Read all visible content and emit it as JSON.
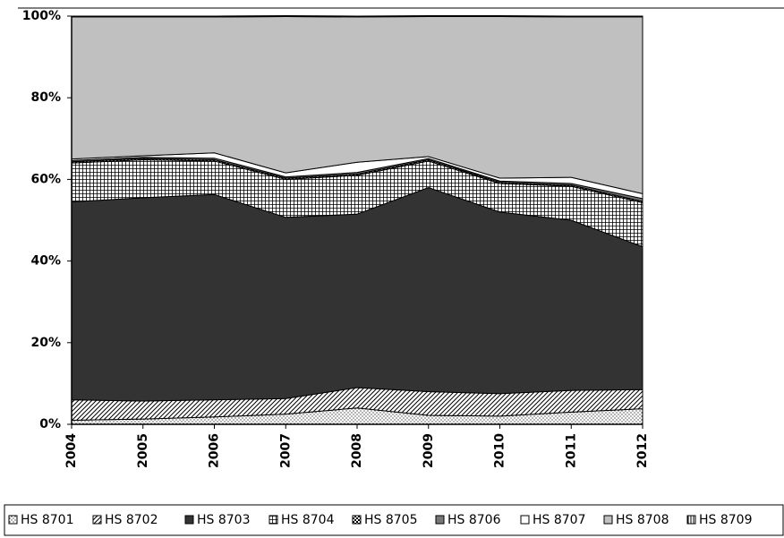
{
  "chart_data": {
    "type": "stacked_area",
    "categories": [
      "2004",
      "2005",
      "2006",
      "2007",
      "2008",
      "2009",
      "2010",
      "2011",
      "2012"
    ],
    "series": [
      {
        "name": "HS 8701",
        "color": "#ffffff",
        "pattern": "dots",
        "values": [
          1,
          1.3,
          1.8,
          2.5,
          4,
          2.2,
          2,
          3,
          3.8
        ]
      },
      {
        "name": "HS 8702",
        "color": "#ffffff",
        "pattern": "diagonal",
        "values": [
          5,
          4.4,
          4.2,
          3.8,
          5,
          5.8,
          5.5,
          5.3,
          4.7
        ]
      },
      {
        "name": "HS 8703",
        "color": "#333333",
        "pattern": "solid",
        "values": [
          48.5,
          49.8,
          50.3,
          44.4,
          42.5,
          50,
          44.5,
          41.7,
          35
        ]
      },
      {
        "name": "HS 8704",
        "color": "#ffffff",
        "pattern": "grid",
        "values": [
          9.5,
          9.3,
          8.2,
          9.3,
          9.5,
          6.5,
          7,
          8.3,
          10.8
        ]
      },
      {
        "name": "HS 8705",
        "color": "#555555",
        "pattern": "checker",
        "values": [
          0.3,
          0.3,
          0.3,
          0.3,
          0.3,
          0.3,
          0.3,
          0.3,
          0.3
        ]
      },
      {
        "name": "HS 8706",
        "color": "#777777",
        "pattern": "solid",
        "values": [
          0.3,
          0.3,
          0.4,
          0.3,
          0.4,
          0.3,
          0.3,
          0.4,
          0.7
        ]
      },
      {
        "name": "HS 8707",
        "color": "#ffffff",
        "pattern": "solid",
        "values": [
          0.4,
          0.4,
          1.3,
          1,
          2.5,
          0.5,
          0.7,
          1.5,
          1.2
        ]
      },
      {
        "name": "HS 8708",
        "color": "#c0c0c0",
        "pattern": "solid",
        "values": [
          34.8,
          34.0,
          33.3,
          38.3,
          35.6,
          34.3,
          39.6,
          39.3,
          43.3
        ]
      },
      {
        "name": "HS 8709",
        "color": "#ffffff",
        "pattern": "vertical",
        "values": [
          0.2,
          0.2,
          0.2,
          0.2,
          0.2,
          0.2,
          0.2,
          0.2,
          0.2
        ]
      }
    ],
    "ylim": [
      0,
      100
    ],
    "yticks": [
      {
        "value": 0,
        "label": "0%"
      },
      {
        "value": 20,
        "label": "20%"
      },
      {
        "value": 40,
        "label": "40%"
      },
      {
        "value": 60,
        "label": "60%"
      },
      {
        "value": 80,
        "label": "80%"
      },
      {
        "value": 100,
        "label": "100%"
      }
    ]
  }
}
